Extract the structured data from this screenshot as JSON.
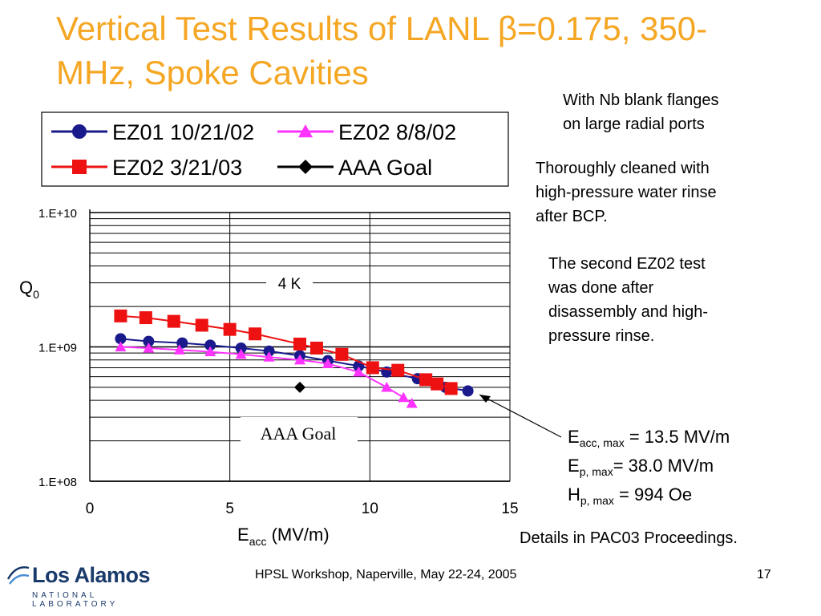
{
  "slide": {
    "title": "Vertical Test Results of LANL β=0.175, 350-MHz, Spoke Cavities",
    "notes": [
      "With Nb blank flanges\non large radial ports",
      "Thoroughly cleaned with\nhigh-pressure water rinse\nafter BCP.",
      "The second EZ02 test\nwas done after\ndisassembly and high-\npressure rinse."
    ],
    "stats": {
      "eacc_main": "E",
      "eacc_sub": "acc, max",
      "eacc_val": " = 13.5 MV/m",
      "ep_main": "E",
      "ep_sub": "p, max",
      "ep_val": "= 38.0 MV/m",
      "hp_main": "H",
      "hp_sub": "p, max",
      "hp_val": " = 994 Oe"
    },
    "details": "Details in PAC03 Proceedings.",
    "footer_center": "HPSL Workshop, Naperville, May 22-24, 2005",
    "page_number": "17",
    "logo_main": "Los Alamos",
    "logo_sub": "NATIONAL LABORATORY",
    "colors": {
      "title": "#f5a623",
      "ez01": "#1a1a8c",
      "ez02_aug": "#ff33ff",
      "ez02_mar": "#ee1111",
      "goal": "#000000",
      "logo": "#1a3a6b"
    }
  },
  "chart_data": {
    "type": "scatter",
    "title": "",
    "xlabel_main": "E",
    "xlabel_sub": "acc",
    "xlabel_rest": " (MV/m)",
    "ylabel_main": "Q",
    "ylabel_sub": "0",
    "xlim": [
      0,
      15
    ],
    "ylim": [
      100000000.0,
      10000000000.0
    ],
    "y_scale": "log",
    "x_ticks": [
      0,
      5,
      10,
      15
    ],
    "x_tick_labels": [
      "0",
      "5",
      "10",
      "15"
    ],
    "y_ticks": [
      100000000.0,
      1000000000.0,
      10000000000.0
    ],
    "y_tick_labels": [
      "1.E+08",
      "1.E+09",
      "1.E+10"
    ],
    "grid": true,
    "legend_position": "top",
    "annotations": {
      "temperature": "4 K",
      "goal_label": "AAA Goal"
    },
    "series": [
      {
        "name": "EZ01 10/21/02",
        "color": "#1a1a8c",
        "marker": "circle",
        "x": [
          1.1,
          2.1,
          3.3,
          4.3,
          5.4,
          6.4,
          7.5,
          8.5,
          9.6,
          10.6,
          11.7,
          12.7,
          13.5
        ],
        "y": [
          1150000000.0,
          1100000000.0,
          1070000000.0,
          1030000000.0,
          980000000.0,
          930000000.0,
          860000000.0,
          790000000.0,
          720000000.0,
          650000000.0,
          580000000.0,
          500000000.0,
          470000000.0
        ]
      },
      {
        "name": "EZ02 8/8/02",
        "color": "#ff33ff",
        "marker": "triangle",
        "x": [
          1.1,
          2.1,
          3.2,
          4.3,
          5.4,
          6.4,
          7.5,
          8.5,
          9.6,
          10.6,
          11.2,
          11.5
        ],
        "y": [
          1000000000.0,
          980000000.0,
          950000000.0,
          920000000.0,
          880000000.0,
          840000000.0,
          800000000.0,
          750000000.0,
          650000000.0,
          500000000.0,
          420000000.0,
          380000000.0
        ]
      },
      {
        "name": "EZ02 3/21/03",
        "color": "#ee1111",
        "marker": "square",
        "x": [
          1.1,
          2.0,
          3.0,
          4.0,
          5.0,
          5.9,
          7.5,
          8.1,
          9.0,
          10.1,
          11.0,
          12.0,
          12.4,
          12.9
        ],
        "y": [
          1700000000.0,
          1650000000.0,
          1550000000.0,
          1450000000.0,
          1350000000.0,
          1250000000.0,
          1050000000.0,
          980000000.0,
          880000000.0,
          700000000.0,
          670000000.0,
          570000000.0,
          530000000.0,
          490000000.0
        ]
      },
      {
        "name": "AAA Goal",
        "color": "#000000",
        "marker": "diamond",
        "x": [
          7.5
        ],
        "y": [
          500000000.0
        ]
      }
    ]
  }
}
